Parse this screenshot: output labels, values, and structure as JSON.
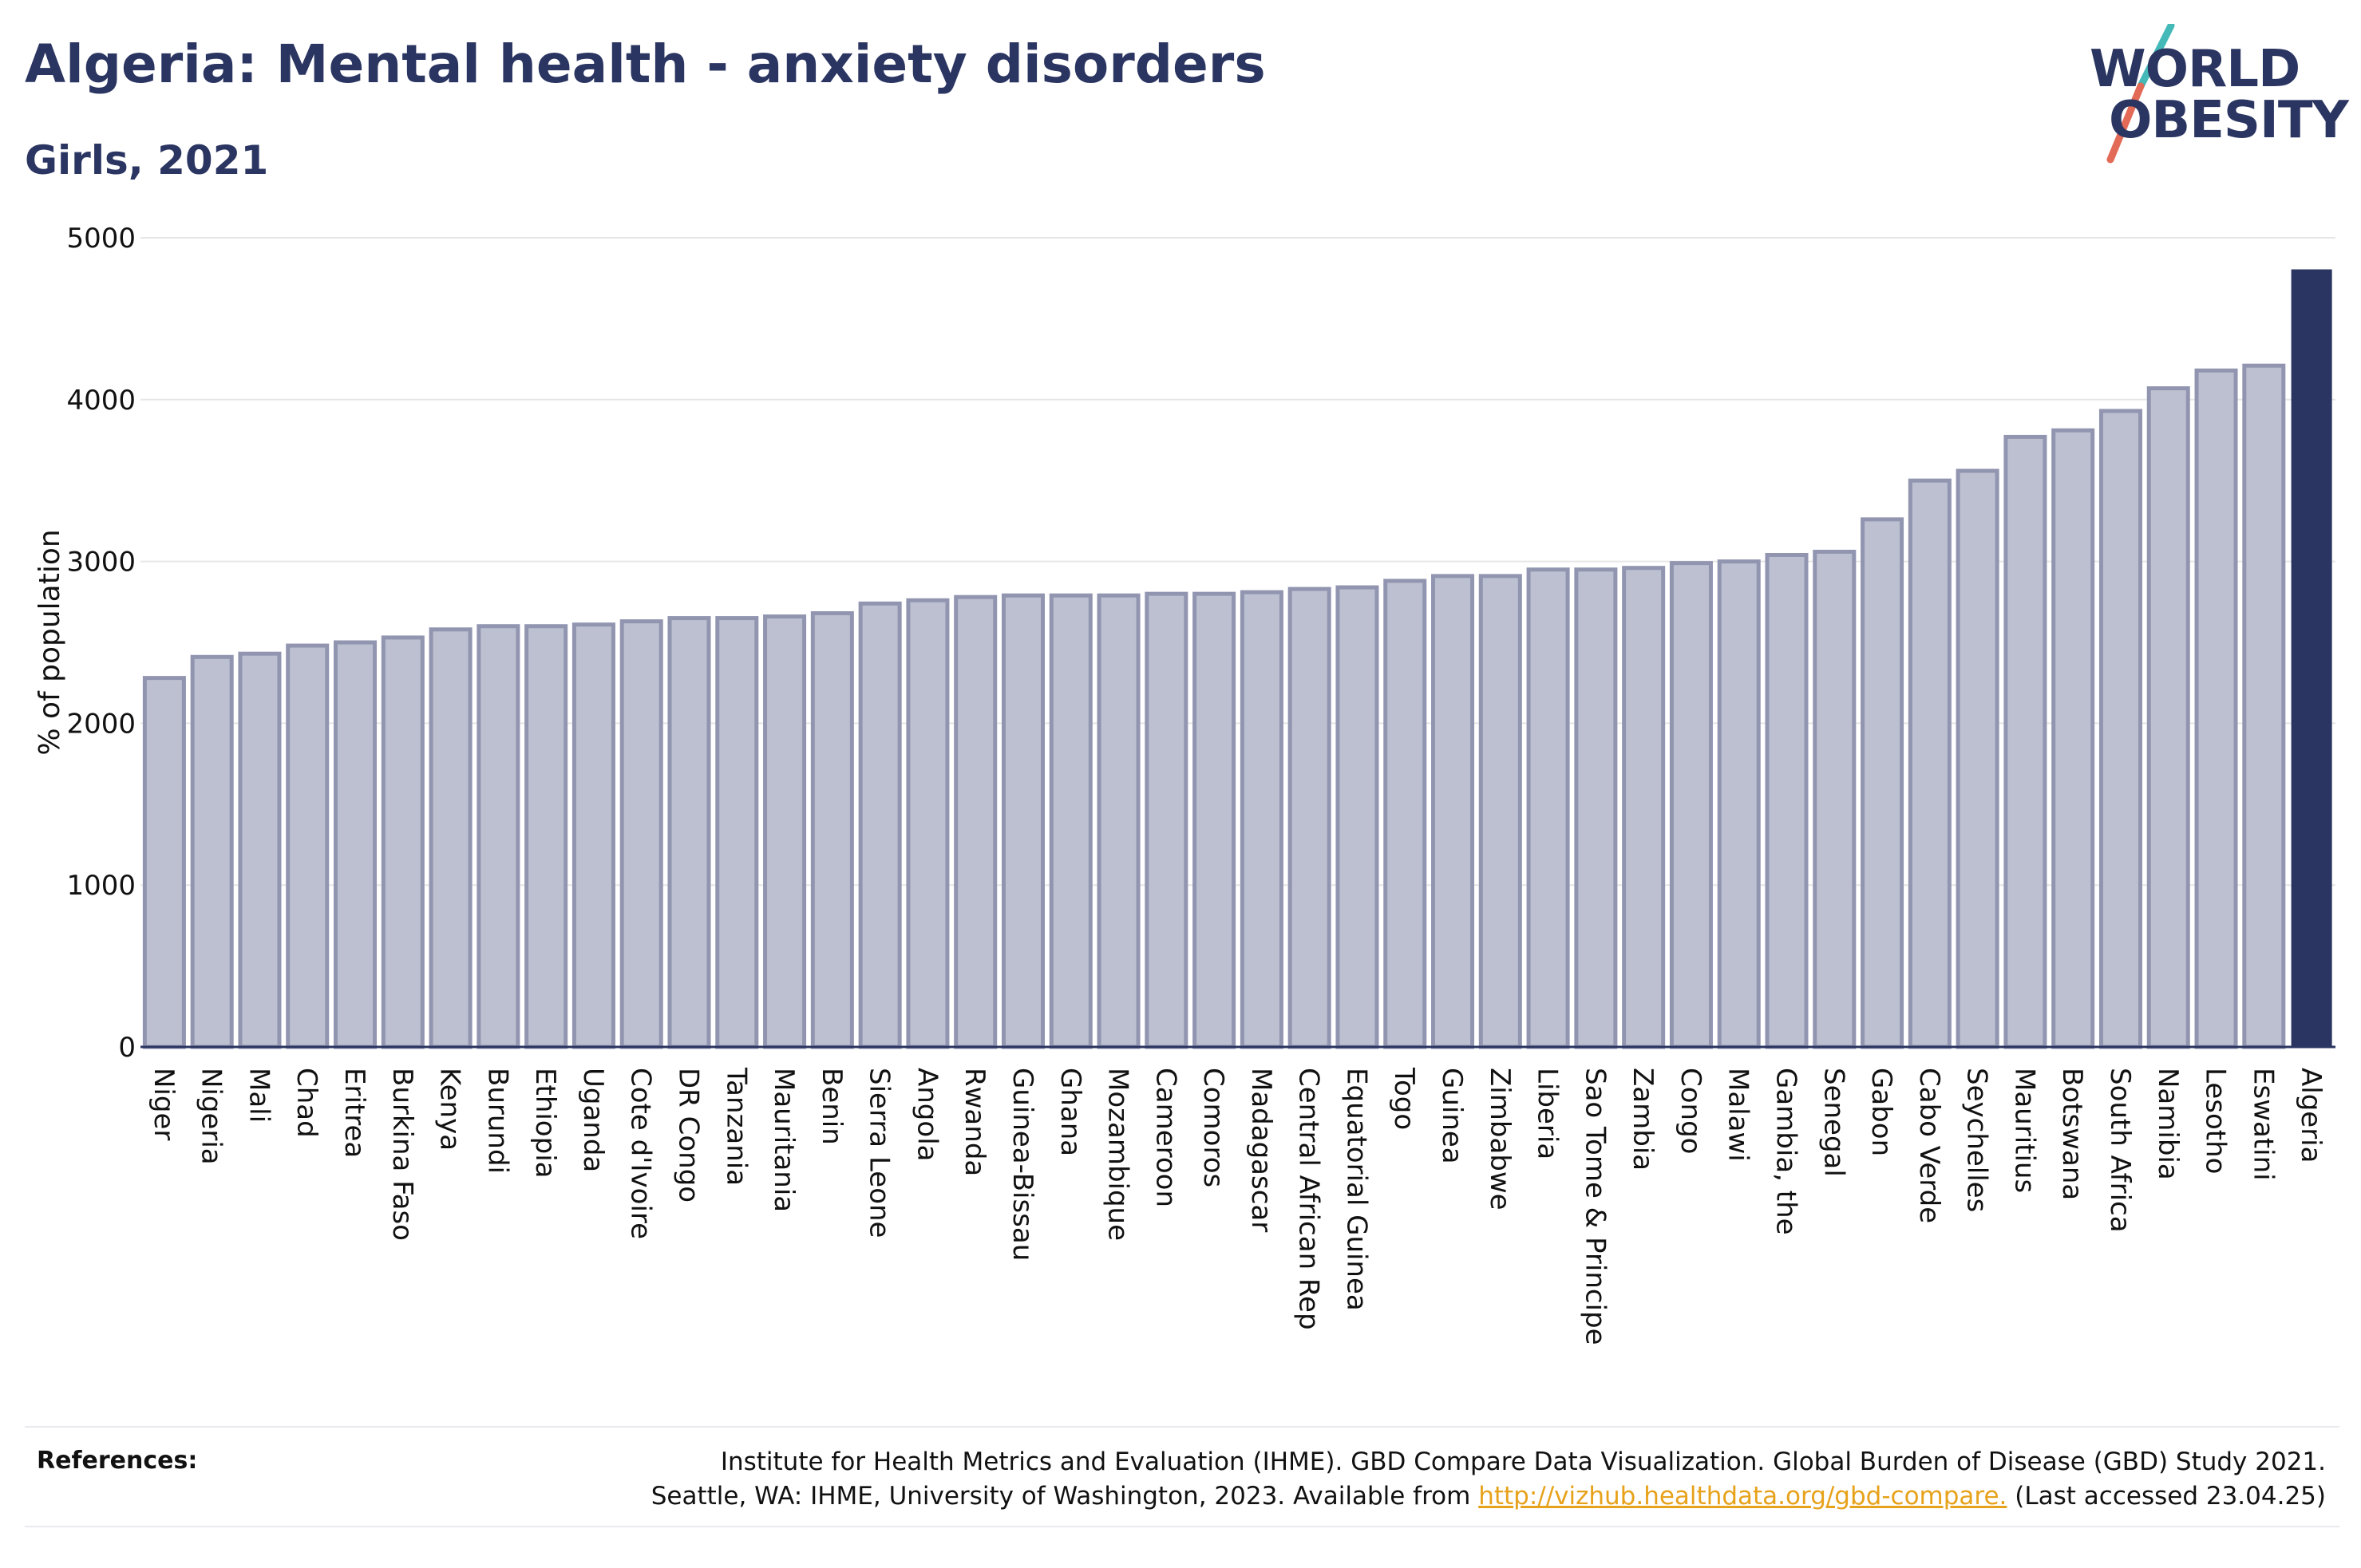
{
  "header": {
    "title": "Algeria: Mental health - anxiety disorders",
    "subtitle": "Girls, 2021"
  },
  "logo": {
    "line1": "WORLD",
    "line2": "OBESITY",
    "slash_colors": [
      "#44b9b8",
      "#e26a56"
    ]
  },
  "chart_data": {
    "type": "bar",
    "ylabel": "% of population",
    "xlabel": "",
    "ylim": [
      0,
      5000
    ],
    "yticks": [
      0,
      1000,
      2000,
      3000,
      4000,
      5000
    ],
    "grid": true,
    "categories": [
      "Niger",
      "Nigeria",
      "Mali",
      "Chad",
      "Eritrea",
      "Burkina Faso",
      "Kenya",
      "Burundi",
      "Ethiopia",
      "Uganda",
      "Cote d'Ivoire",
      "DR Congo",
      "Tanzania",
      "Mauritania",
      "Benin",
      "Sierra Leone",
      "Angola",
      "Rwanda",
      "Guinea-Bissau",
      "Ghana",
      "Mozambique",
      "Cameroon",
      "Comoros",
      "Madagascar",
      "Central African Rep",
      "Equatorial Guinea",
      "Togo",
      "Guinea",
      "Zimbabwe",
      "Liberia",
      "Sao Tome & Principe",
      "Zambia",
      "Congo",
      "Malawi",
      "Gambia, the",
      "Senegal",
      "Gabon",
      "Cabo Verde",
      "Seychelles",
      "Mauritius",
      "Botswana",
      "South Africa",
      "Namibia",
      "Lesotho",
      "Eswatini",
      "Algeria"
    ],
    "values": [
      2280,
      2410,
      2430,
      2480,
      2500,
      2530,
      2580,
      2600,
      2600,
      2610,
      2630,
      2650,
      2650,
      2660,
      2680,
      2740,
      2760,
      2780,
      2790,
      2790,
      2790,
      2800,
      2800,
      2810,
      2830,
      2840,
      2880,
      2910,
      2910,
      2950,
      2950,
      2960,
      2990,
      3000,
      3040,
      3060,
      3260,
      3500,
      3560,
      3770,
      3810,
      3930,
      4070,
      4180,
      4210,
      4800
    ],
    "highlight": "Algeria",
    "colors": {
      "bar": "#bcc0d0",
      "bar_border": "#9195b0",
      "highlight": "#2b3561",
      "grid": "#e6e6e6",
      "axis": "#2b3561"
    }
  },
  "references": {
    "label": "References:",
    "line1": "Institute for Health Metrics and Evaluation (IHME). GBD Compare Data Visualization. Global Burden of Disease (GBD) Study 2021.",
    "line2_prefix": "Seattle, WA: IHME, University of Washington, 2023. Available from ",
    "link": "http://vizhub.healthdata.org/gbd-compare.",
    "line2_suffix": " (Last accessed 23.04.25)"
  }
}
